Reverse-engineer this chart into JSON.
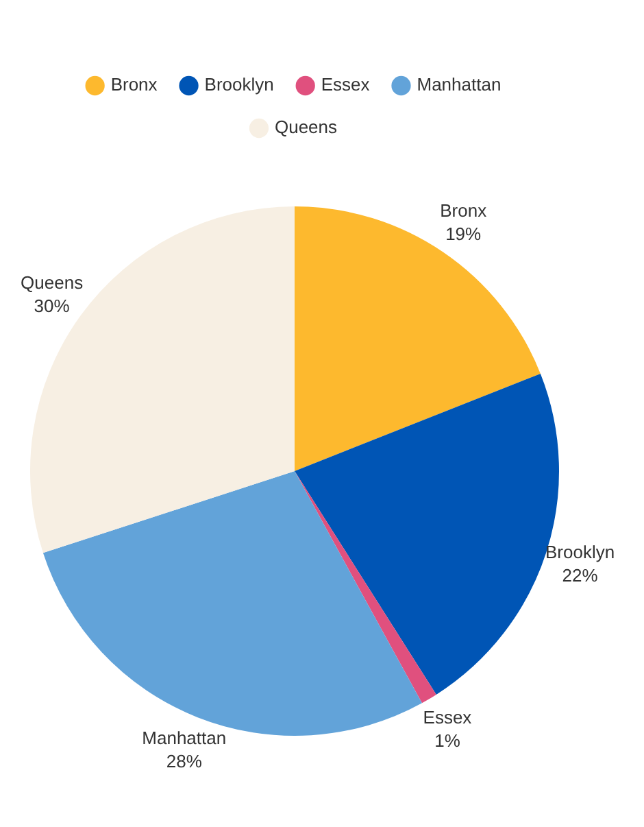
{
  "chart_data": {
    "type": "pie",
    "categories": [
      "Bronx",
      "Brooklyn",
      "Essex",
      "Manhattan",
      "Queens"
    ],
    "values": [
      19,
      22,
      1,
      28,
      30
    ],
    "colors": [
      "#fdb92e",
      "#0055b5",
      "#e0507e",
      "#62a3d9",
      "#f7efe3"
    ],
    "value_labels": [
      "19%",
      "22%",
      "1%",
      "28%",
      "30%"
    ],
    "legend": "top"
  }
}
